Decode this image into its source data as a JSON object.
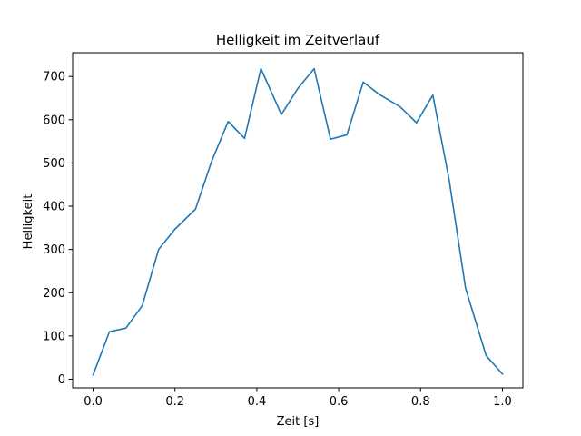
{
  "chart_data": {
    "type": "line",
    "title": "Helligkeit im Zeitverlauf",
    "xlabel": "Zeit [s]",
    "ylabel": "Helligkeit",
    "xlim": [
      -0.05,
      1.05
    ],
    "ylim": [
      -20,
      755
    ],
    "xticks": [
      0.0,
      0.2,
      0.4,
      0.6,
      0.8,
      1.0
    ],
    "xtick_labels": [
      "0.0",
      "0.2",
      "0.4",
      "0.6",
      "0.8",
      "1.0"
    ],
    "yticks": [
      0,
      100,
      200,
      300,
      400,
      500,
      600,
      700
    ],
    "ytick_labels": [
      "0",
      "100",
      "200",
      "300",
      "400",
      "500",
      "600",
      "700"
    ],
    "grid": false,
    "series": [
      {
        "name": "Helligkeit",
        "color": "#1f77b4",
        "x": [
          0.0,
          0.04,
          0.08,
          0.12,
          0.16,
          0.2,
          0.25,
          0.29,
          0.33,
          0.37,
          0.41,
          0.46,
          0.5,
          0.54,
          0.58,
          0.62,
          0.66,
          0.7,
          0.75,
          0.79,
          0.83,
          0.87,
          0.91,
          0.96,
          1.0
        ],
        "y": [
          10,
          110,
          118,
          170,
          300,
          347,
          393,
          505,
          596,
          557,
          718,
          612,
          672,
          718,
          555,
          565,
          687,
          658,
          630,
          593,
          657,
          460,
          210,
          55,
          12
        ]
      }
    ]
  }
}
